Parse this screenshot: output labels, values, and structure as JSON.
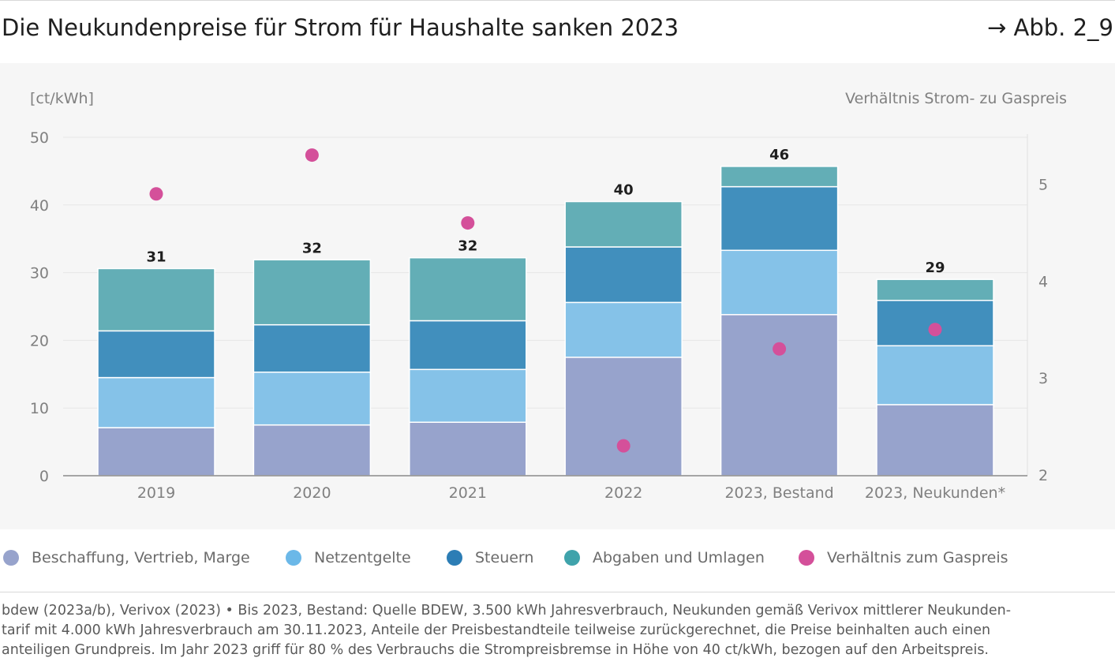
{
  "header": {
    "title": "Die Neukundenpreise für Strom für Haushalte sanken 2023",
    "figure_ref": "→ Abb. 2_9"
  },
  "chart_data": {
    "type": "bar",
    "stacked": true,
    "y_unit_label": "[ct/kWh]",
    "y2_label": "Verhältnis Strom- zu Gaspreis",
    "categories": [
      "2019",
      "2020",
      "2021",
      "2022",
      "2023, Bestand",
      "2023, Neukunden*"
    ],
    "ylim": [
      0,
      50
    ],
    "yticks": [
      0,
      10,
      20,
      30,
      40,
      50
    ],
    "y2lim": [
      2,
      5.5
    ],
    "y2ticks": [
      2,
      3,
      4,
      5
    ],
    "series": [
      {
        "name": "Beschaffung, Vertrieb, Marge",
        "color": "#97a3cc",
        "values": [
          7.1,
          7.5,
          7.9,
          17.5,
          23.8,
          10.5
        ]
      },
      {
        "name": "Netzentgelte",
        "color": "#85c2e8",
        "values": [
          7.4,
          7.8,
          7.8,
          8.1,
          9.5,
          8.7
        ]
      },
      {
        "name": "Steuern",
        "color": "#418fbd",
        "values": [
          6.9,
          7.0,
          7.2,
          8.2,
          9.4,
          6.7
        ]
      },
      {
        "name": "Abgaben und Umlagen",
        "color": "#63aeb6",
        "values": [
          9.2,
          9.6,
          9.3,
          6.7,
          3.0,
          3.1
        ]
      }
    ],
    "totals": [
      "31",
      "32",
      "32",
      "40",
      "46",
      "29"
    ],
    "ratio_series": {
      "name": "Verhältnis zum Gaspreis",
      "color": "#d4509a",
      "axis": "right",
      "values": [
        4.9,
        5.3,
        4.6,
        2.3,
        3.3,
        3.5
      ]
    },
    "grid": true
  },
  "legend": [
    {
      "label": "Beschaffung, Vertrieb, Marge",
      "color": "#97a3cc"
    },
    {
      "label": "Netzentgelte",
      "color": "#6bb8e8"
    },
    {
      "label": "Steuern",
      "color": "#2c7db5"
    },
    {
      "label": "Abgaben und Umlagen",
      "color": "#3fa3ab"
    },
    {
      "label": "Verhältnis zum Gaspreis",
      "color": "#d4509a"
    }
  ],
  "note": {
    "line1": "bdew (2023a/b), Verivox (2023) • Bis 2023, Bestand: Quelle BDEW, 3.500 kWh Jahresverbrauch, Neukunden gemäß Verivox mittlerer Neukunden-",
    "line2": "tarif mit 4.000 kWh Jahresverbrauch am 30.11.2023, Anteile der Preisbestandteile teilweise zurückgerechnet, die Preise beinhalten auch einen",
    "line3": "anteiligen Grundpreis. Im Jahr 2023 griff für 80 % des Verbrauchs die Strompreisbremse in Höhe von 40 ct/kWh, bezogen auf den Arbeitspreis."
  }
}
